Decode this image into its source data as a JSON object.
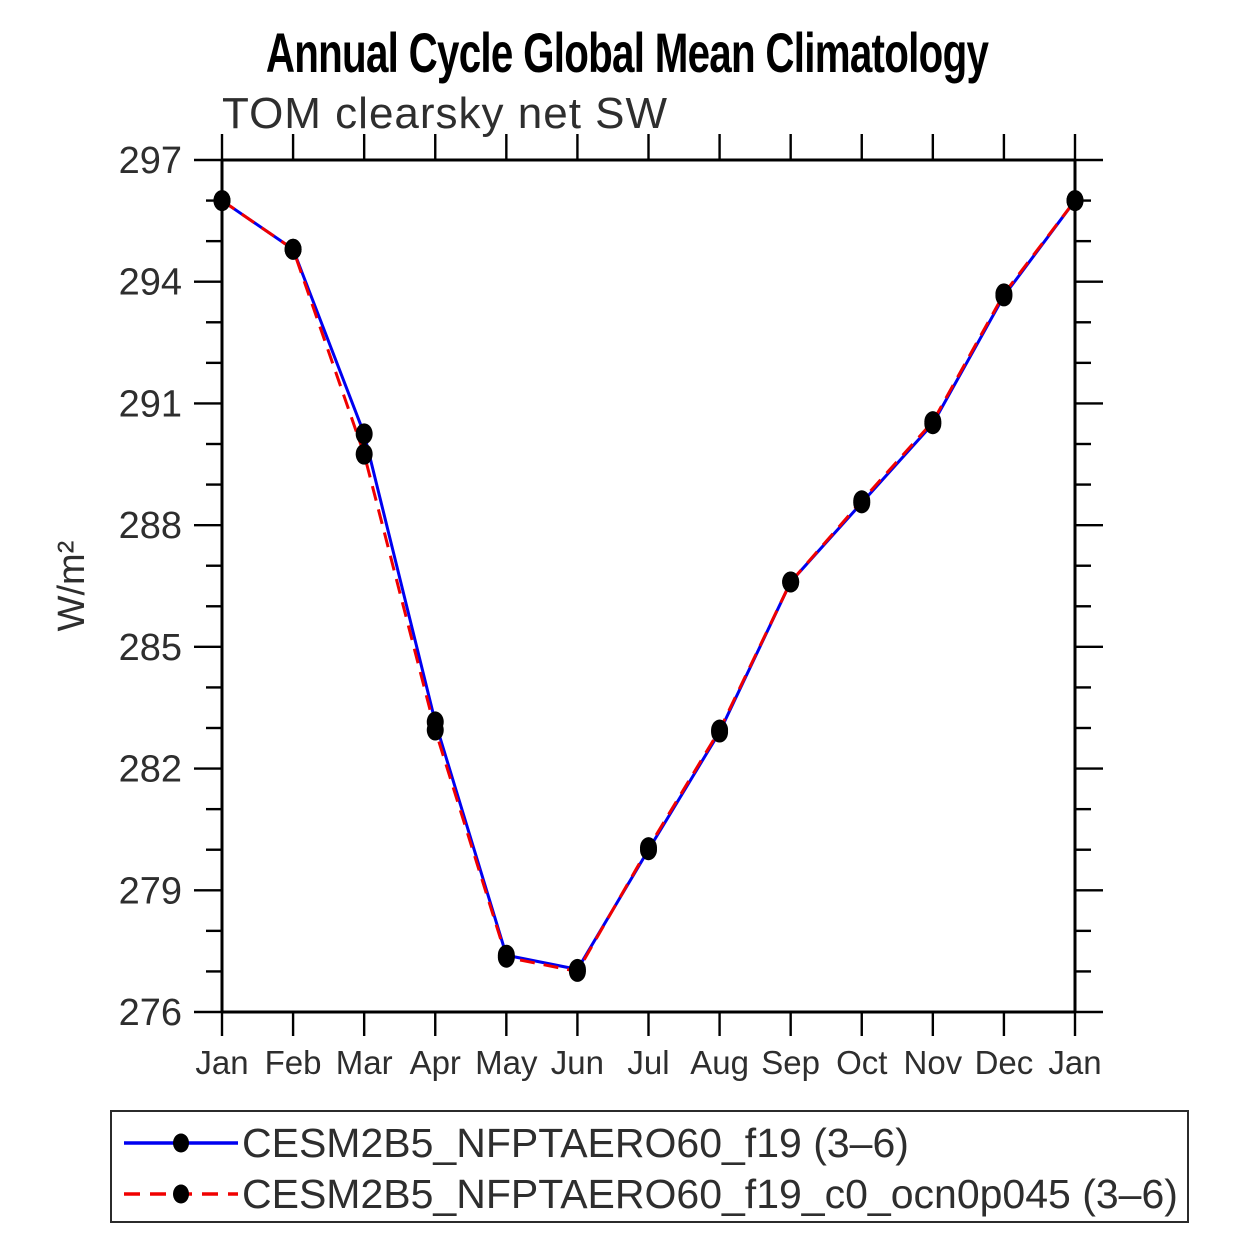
{
  "chart_data": {
    "type": "line",
    "title": "Annual Cycle Global Mean Climatology",
    "subtitle": "TOM clearsky net SW",
    "xlabel": "",
    "ylabel": "W/m²",
    "categories": [
      "Jan",
      "Feb",
      "Mar",
      "Apr",
      "May",
      "Jun",
      "Jul",
      "Aug",
      "Sep",
      "Oct",
      "Nov",
      "Dec",
      "Jan"
    ],
    "ylim": [
      276,
      297
    ],
    "yticks": [
      276,
      279,
      282,
      285,
      288,
      291,
      294,
      297
    ],
    "y_minor_tick_interval": 1,
    "grid": false,
    "legend_position": "bottom-left-box",
    "axis_color": "#000000",
    "marker_color": "#000000",
    "series": [
      {
        "name": "CESM2B5_NFPTAERO60_f19 (3–6)",
        "color": "#0000f0",
        "line_style": "solid",
        "marker": "filled-oval",
        "values": [
          296.0,
          294.8,
          290.25,
          283.15,
          277.4,
          277.05,
          280.0,
          282.9,
          286.6,
          288.55,
          290.5,
          293.65,
          296.0
        ]
      },
      {
        "name": "CESM2B5_NFPTAERO60_f19_c0_ocn0p045 (3–6)",
        "color": "#f00000",
        "line_style": "dashed",
        "marker": "filled-oval",
        "values": [
          296.0,
          294.8,
          289.75,
          282.95,
          277.35,
          277.0,
          280.05,
          282.95,
          286.6,
          288.6,
          290.55,
          293.7,
          296.0
        ]
      }
    ]
  }
}
